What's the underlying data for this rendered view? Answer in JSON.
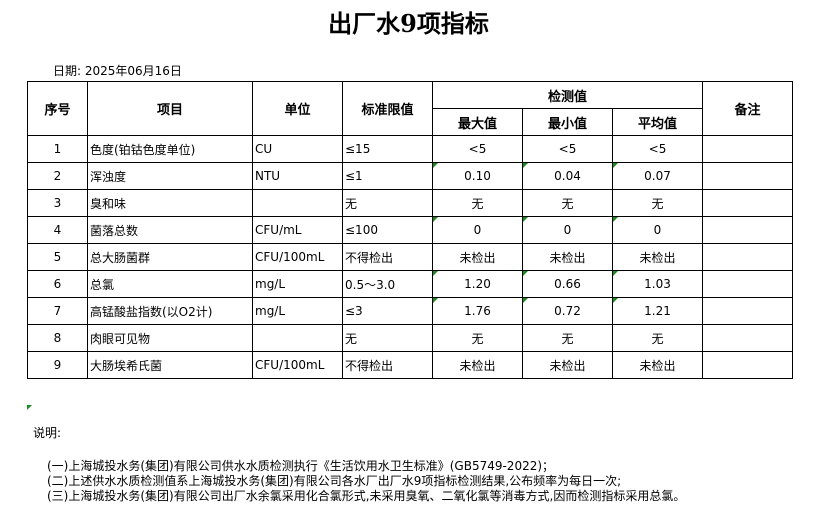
{
  "title": "出厂水9项指标",
  "date": "日期: 2025年06月16日",
  "headers": {
    "no": "序号",
    "item": "项目",
    "unit": "单位",
    "limit": "标准限值",
    "measured": "检测值",
    "max": "最大值",
    "min": "最小值",
    "avg": "平均值",
    "remark": "备注"
  },
  "rows": [
    {
      "no": "1",
      "item": "色度(铂钴色度单位)",
      "unit": "CU",
      "limit": "≤15",
      "max": "<5",
      "min": "<5",
      "avg": "<5"
    },
    {
      "no": "2",
      "item": "浑浊度",
      "unit": "NTU",
      "limit": "≤1",
      "max": "0.10",
      "min": "0.04",
      "avg": "0.07"
    },
    {
      "no": "3",
      "item": "臭和味",
      "unit": "",
      "limit": "无",
      "max": "无",
      "min": "无",
      "avg": "无"
    },
    {
      "no": "4",
      "item": "菌落总数",
      "unit": "CFU/mL",
      "limit": "≤100",
      "max": "0",
      "min": "0",
      "avg": "0"
    },
    {
      "no": "5",
      "item": "总大肠菌群",
      "unit": "CFU/100mL",
      "limit": "不得检出",
      "max": "未检出",
      "min": "未检出",
      "avg": "未检出"
    },
    {
      "no": "6",
      "item": "总氯",
      "unit": "mg/L",
      "limit": "0.5～3.0",
      "max": "1.20",
      "min": "0.66",
      "avg": "1.03"
    },
    {
      "no": "7",
      "item": "高锰酸盐指数(以O2计)",
      "unit": "mg/L",
      "limit": "≤3",
      "max": "1.76",
      "min": "0.72",
      "avg": "1.21"
    },
    {
      "no": "8",
      "item": "肉眼可见物",
      "unit": "",
      "limit": "无",
      "max": "无",
      "min": "无",
      "avg": "无"
    },
    {
      "no": "9",
      "item": "大肠埃希氏菌",
      "unit": "CFU/100mL",
      "limit": "不得检出",
      "max": "未检出",
      "min": "未检出",
      "avg": "未检出"
    }
  ],
  "notes": {
    "label": "说明:",
    "lines": [
      "(一)上海城投水务(集团)有限公司供水水质检测执行《生活饮用水卫生标准》(GB5749-2022)；",
      "(二)上述供水水质检测值系上海城投水务(集团)有限公司各水厂出厂水9项指标检测结果,公布频率为每日一次;",
      "(三)上海城投水务(集团)有限公司出厂水余氯采用化合氯形式,未采用臭氧、二氧化氯等消毒方式,因而检测指标采用总氯。"
    ]
  },
  "colors": {
    "cell_marker": "#1a8a1a"
  }
}
